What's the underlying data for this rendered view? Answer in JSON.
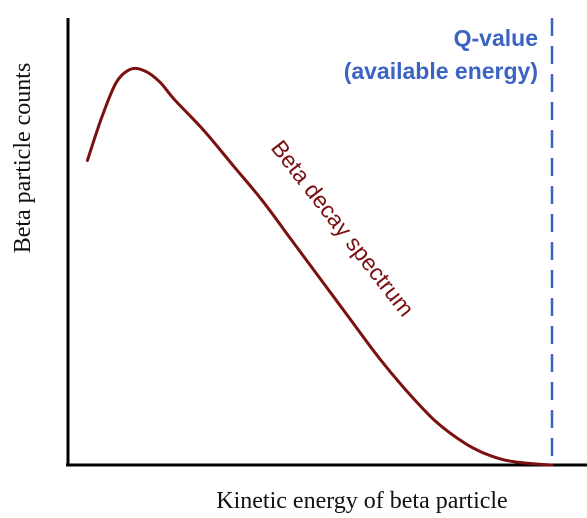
{
  "chart_data": {
    "type": "line",
    "title": "",
    "xlabel": "Kinetic energy of beta particle",
    "ylabel": "Beta particle counts",
    "xlim": [
      0,
      1
    ],
    "ylim": [
      0,
      1
    ],
    "grid": false,
    "ticks": false,
    "series": [
      {
        "name": "Beta decay spectrum",
        "color": "#7a1010",
        "x": [
          0.04,
          0.07,
          0.1,
          0.13,
          0.16,
          0.19,
          0.22,
          0.28,
          0.34,
          0.4,
          0.46,
          0.52,
          0.58,
          0.64,
          0.7,
          0.76,
          0.82,
          0.86,
          0.9,
          0.94,
          0.97,
          1.0
        ],
        "y": [
          0.7,
          0.8,
          0.88,
          0.91,
          0.905,
          0.88,
          0.84,
          0.77,
          0.69,
          0.61,
          0.52,
          0.43,
          0.34,
          0.25,
          0.17,
          0.1,
          0.05,
          0.027,
          0.012,
          0.005,
          0.002,
          0.0
        ]
      }
    ],
    "annotations": [
      {
        "name": "q-value-line",
        "x": 1.0,
        "style": "dashed",
        "color": "#3b63c4",
        "label_line1": "Q-value",
        "label_line2": "(available energy)"
      }
    ],
    "curve_label": "Beta decay spectrum"
  }
}
